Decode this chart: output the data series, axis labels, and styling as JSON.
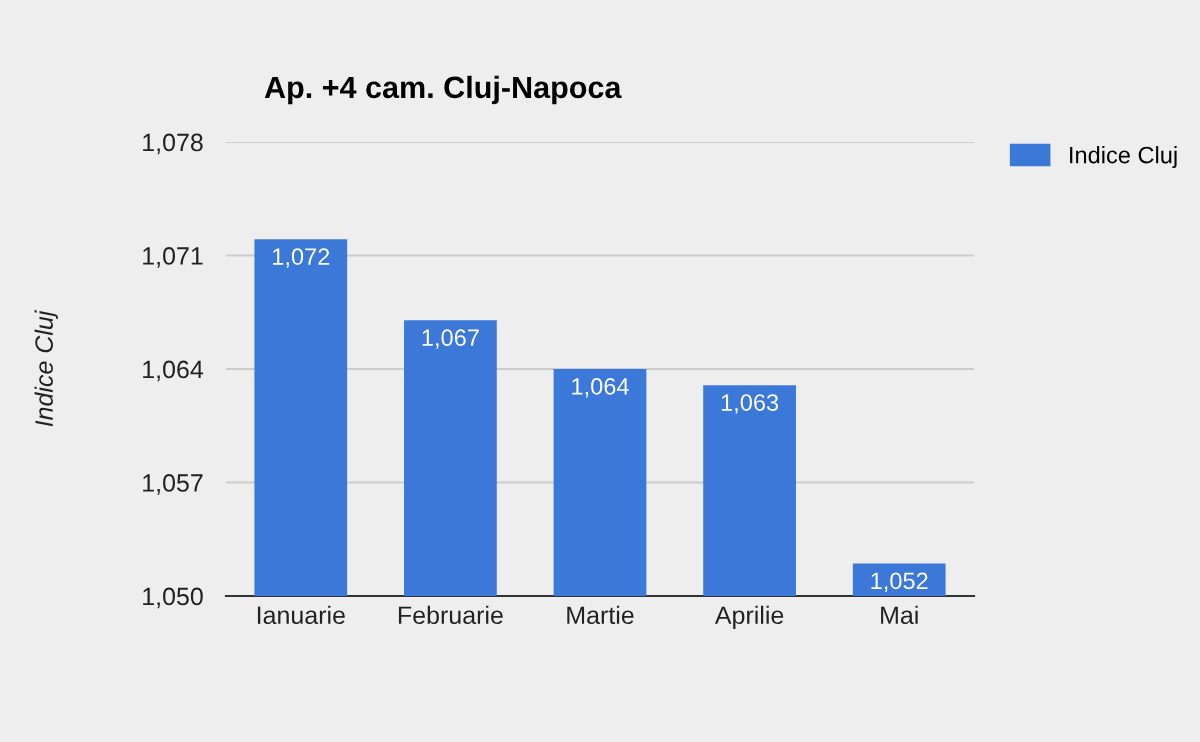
{
  "chart_data": {
    "type": "bar",
    "title": "Ap. +4 cam. Cluj-Napoca",
    "ylabel": "Indice Cluj",
    "categories": [
      "Ianuarie",
      "Februarie",
      "Martie",
      "Aprilie",
      "Mai"
    ],
    "series": [
      {
        "name": "Indice Cluj",
        "color": "#3c78d8",
        "values": [
          1072,
          1067,
          1064,
          1063,
          1052
        ],
        "value_labels": [
          "1,072",
          "1,067",
          "1,064",
          "1,063",
          "1,052"
        ]
      }
    ],
    "ylim": [
      1050,
      1078
    ],
    "yticks": [
      {
        "value": 1050,
        "label": "1,050"
      },
      {
        "value": 1057,
        "label": "1,057"
      },
      {
        "value": 1064,
        "label": "1,064"
      },
      {
        "value": 1071,
        "label": "1,071"
      },
      {
        "value": 1078,
        "label": "1,078"
      }
    ],
    "grid": "y",
    "legend": "right"
  }
}
